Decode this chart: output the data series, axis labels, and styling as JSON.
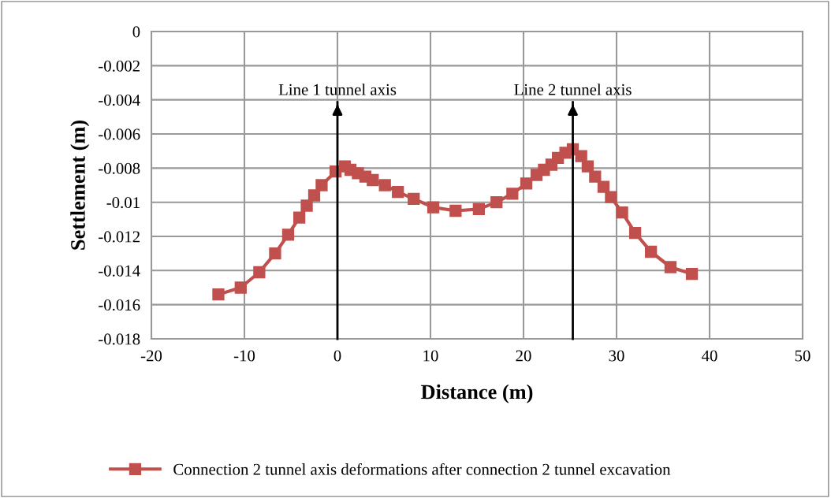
{
  "chart_data": {
    "type": "line",
    "xlabel": "Distance (m)",
    "ylabel": "Settlement (m)",
    "xlim": [
      -20,
      50
    ],
    "xticks": [
      -20,
      -10,
      0,
      10,
      20,
      30,
      40,
      50
    ],
    "ylim": [
      -0.018,
      0
    ],
    "yticks": [
      {
        "value": -0.018,
        "label": "-0.018"
      },
      {
        "value": -0.016,
        "label": "-0.016"
      },
      {
        "value": -0.014,
        "label": "-0.014"
      },
      {
        "value": -0.012,
        "label": "-0.012"
      },
      {
        "value": -0.01,
        "label": "-0.01"
      },
      {
        "value": -0.008,
        "label": "-0.008"
      },
      {
        "value": -0.006,
        "label": "-0.006"
      },
      {
        "value": -0.004,
        "label": "-0.004"
      },
      {
        "value": -0.002,
        "label": "-0.002"
      },
      {
        "value": 0,
        "label": "0"
      }
    ],
    "grid": true,
    "legend": "bottom",
    "marker": "square",
    "line_style": "solid",
    "ref_lines": [
      {
        "axis": "x",
        "value": 0,
        "label": "Line 1 tunnel axis",
        "color": "#000000"
      },
      {
        "axis": "x",
        "value": 25.3,
        "label": "Line 2 tunnel axis",
        "color": "#000000"
      }
    ],
    "series": [
      {
        "name": "Connection 2 tunnel axis deformations after connection 2 tunnel excavation",
        "color": "#c0504d",
        "x": [
          -12.8,
          -10.4,
          -8.4,
          -6.7,
          -5.3,
          -4.1,
          -3.3,
          -2.5,
          -1.7,
          -0.2,
          0.8,
          1.4,
          2.2,
          3.0,
          3.8,
          5.1,
          6.5,
          8.2,
          10.3,
          12.7,
          15.2,
          17.1,
          18.8,
          20.3,
          21.4,
          22.2,
          23.0,
          23.7,
          24.5,
          25.3,
          26.2,
          26.9,
          27.7,
          28.6,
          29.4,
          30.6,
          32.0,
          33.7,
          35.8,
          38.1
        ],
        "values": [
          -0.0154,
          -0.015,
          -0.0141,
          -0.013,
          -0.0119,
          -0.0109,
          -0.0102,
          -0.0096,
          -0.009,
          -0.0082,
          -0.0079,
          -0.0081,
          -0.0083,
          -0.0085,
          -0.0087,
          -0.009,
          -0.0094,
          -0.0098,
          -0.0103,
          -0.0105,
          -0.0104,
          -0.01,
          -0.0095,
          -0.0089,
          -0.0084,
          -0.0081,
          -0.0078,
          -0.0074,
          -0.0071,
          -0.0069,
          -0.0073,
          -0.0079,
          -0.0085,
          -0.0091,
          -0.0097,
          -0.0106,
          -0.0118,
          -0.0129,
          -0.0138,
          -0.0142
        ]
      }
    ]
  }
}
